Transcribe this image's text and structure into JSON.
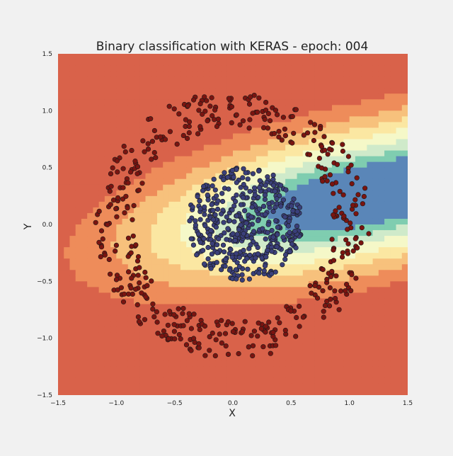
{
  "chart_data": {
    "type": "scatter",
    "title": "Binary classification with KERAS - epoch: 004",
    "xlabel": "X",
    "ylabel": "Y",
    "xlim": [
      -1.5,
      1.5
    ],
    "ylim": [
      -1.5,
      1.5
    ],
    "x_ticks": [
      "−1.5",
      "−1.0",
      "−0.5",
      "0.0",
      "0.5",
      "1.0",
      "1.5"
    ],
    "y_ticks": [
      "−1.5",
      "−1.0",
      "−0.5",
      "0.0",
      "0.5",
      "1.0",
      "1.5"
    ],
    "grid": false,
    "background": "decision-boundary contour, Spectral colormap (red = outer class, blue = inner class)",
    "series": [
      {
        "color": "#7a1410",
        "distribution": "ring",
        "center": [
          0.0,
          0.0
        ],
        "radius_range": [
          0.85,
          1.18
        ],
        "approx_count": 450
      },
      {
        "color": "#3a3f7a",
        "distribution": "disc",
        "center": [
          0.1,
          0.0
        ],
        "radius_max": 0.5,
        "approx_count": 450
      }
    ],
    "contour_levels": [
      {
        "level": 0,
        "color": "#d9624a"
      },
      {
        "level": 1,
        "color": "#ee8c5a"
      },
      {
        "level": 2,
        "color": "#f7c17c"
      },
      {
        "level": 3,
        "color": "#fbe7a2"
      },
      {
        "level": 4,
        "color": "#f5f8c8"
      },
      {
        "level": 5,
        "color": "#cfeaca"
      },
      {
        "level": 6,
        "color": "#7fcdb0"
      },
      {
        "level": 7,
        "color": "#5a86b8"
      }
    ]
  }
}
